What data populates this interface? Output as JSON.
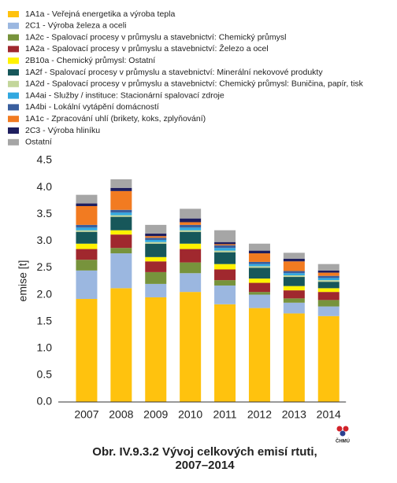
{
  "chart_data": {
    "type": "stacked_bar",
    "y_label": "emise [t]",
    "caption": [
      "Obr. IV.9.3.2  Vývoj celkových emisí rtuti,",
      "2007–2014"
    ],
    "logo_text": "ČHMÚ",
    "categories": [
      "2007",
      "2008",
      "2009",
      "2010",
      "2011",
      "2012",
      "2013",
      "2014"
    ],
    "ylim": [
      0,
      4.5
    ],
    "yticks": [
      {
        "value": 0,
        "label": "0.0"
      },
      {
        "value": 0.5,
        "label": "0.5"
      },
      {
        "value": 1,
        "label": "1.0"
      },
      {
        "value": 1.5,
        "label": "1.5"
      },
      {
        "value": 2,
        "label": "2.0"
      },
      {
        "value": 2.5,
        "label": "2.5"
      },
      {
        "value": 3,
        "label": "3.0"
      },
      {
        "value": 3.5,
        "label": "3.5"
      },
      {
        "value": 4,
        "label": "4.0"
      },
      {
        "value": 4.5,
        "label": "4.5"
      }
    ],
    "series": [
      {
        "name": "1A1a - Veřejná energetika a výroba tepla",
        "color": "#ffc20e",
        "values": [
          1.92,
          2.12,
          1.95,
          2.05,
          1.82,
          1.75,
          1.65,
          1.6
        ]
      },
      {
        "name": "2C1 - Výroba železa a oceli",
        "color": "#9bb7e0",
        "values": [
          0.53,
          0.65,
          0.25,
          0.35,
          0.35,
          0.25,
          0.2,
          0.18
        ]
      },
      {
        "name": "1A2c - Spalovací procesy v průmyslu a stavebnictví: Chemický průmysl",
        "color": "#77933c",
        "values": [
          0.2,
          0.1,
          0.22,
          0.2,
          0.1,
          0.05,
          0.08,
          0.12
        ]
      },
      {
        "name": "1A2a - Spalovací procesy v průmyslu a stavebnictví: Železo a ocel",
        "color": "#a0282e",
        "values": [
          0.2,
          0.25,
          0.2,
          0.25,
          0.2,
          0.17,
          0.15,
          0.15
        ]
      },
      {
        "name": "2B10a - Chemický průmysl: Ostatní",
        "color": "#fff200",
        "values": [
          0.1,
          0.08,
          0.08,
          0.1,
          0.1,
          0.08,
          0.08,
          0.07
        ]
      },
      {
        "name": "1A2f - Spalovací procesy v průmyslu a stavebnictví: Minerální nekovové produkty",
        "color": "#17575a",
        "values": [
          0.22,
          0.25,
          0.25,
          0.22,
          0.22,
          0.2,
          0.17,
          0.12
        ]
      },
      {
        "name": "1A2d - Spalovací procesy v průmyslu a stavebnictví: Chemický průmysl: Buničina, papír, tisk",
        "color": "#c3d69b",
        "values": [
          0.03,
          0.03,
          0.03,
          0.03,
          0.03,
          0.03,
          0.03,
          0.03
        ]
      },
      {
        "name": "1A4ai - Služby / instituce: Stacionární spalovací zdroje",
        "color": "#31a8e0",
        "values": [
          0.05,
          0.05,
          0.04,
          0.05,
          0.05,
          0.04,
          0.04,
          0.04
        ]
      },
      {
        "name": "1A4bi - Lokální vytápění domácností",
        "color": "#3a5f9e",
        "values": [
          0.05,
          0.05,
          0.04,
          0.05,
          0.05,
          0.04,
          0.04,
          0.04
        ]
      },
      {
        "name": "1A1c - Zpracování uhlí (brikety, koks, zplyňování)",
        "color": "#f27b21",
        "values": [
          0.35,
          0.35,
          0.03,
          0.05,
          0.02,
          0.16,
          0.18,
          0.06
        ]
      },
      {
        "name": "2C3 - Výroba hliníku",
        "color": "#1f1f5f",
        "values": [
          0.05,
          0.06,
          0.05,
          0.07,
          0.04,
          0.05,
          0.05,
          0.04
        ]
      },
      {
        "name": "Ostatní",
        "color": "#a6a6a6",
        "values": [
          0.16,
          0.16,
          0.16,
          0.18,
          0.22,
          0.13,
          0.11,
          0.12
        ]
      }
    ]
  }
}
